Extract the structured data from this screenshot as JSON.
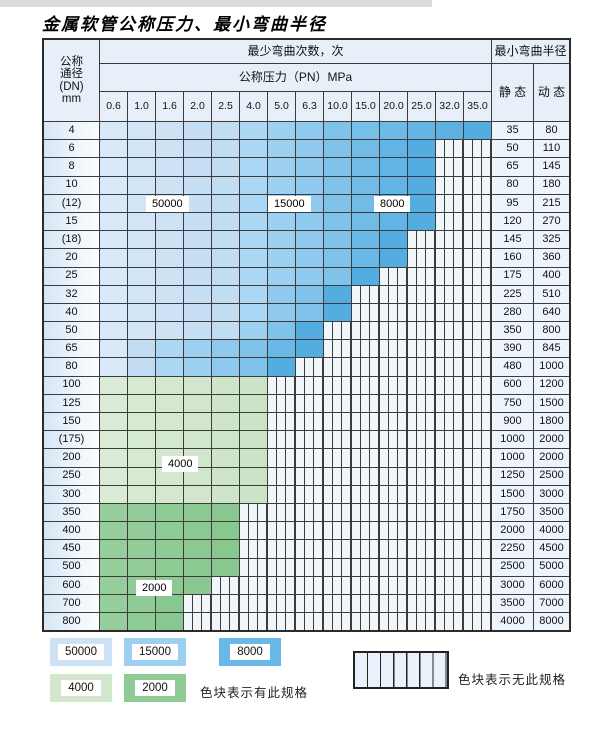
{
  "title": "金属软管公称压力、最小弯曲半径",
  "header": {
    "dn_lines": [
      "公称",
      "通径",
      "(DN)",
      "mm"
    ],
    "bend_cycles": "最少弯曲次数，次",
    "pressure_title": "公称压力（PN）MPa",
    "pressures": [
      "0.6",
      "1.0",
      "1.6",
      "2.0",
      "2.5",
      "4.0",
      "5.0",
      "6.3",
      "10.0",
      "15.0",
      "20.0",
      "25.0",
      "32.0",
      "35.0"
    ],
    "radius_title": "最小弯曲半径",
    "static_label": "静 态",
    "dynamic_label": "动 态"
  },
  "categories": {
    "A": {
      "label": "50000",
      "c1": "#d7e9f8",
      "c2": "#c2dcf2",
      "legend": "#cde2f5"
    },
    "B": {
      "label": "15000",
      "c1": "#aad7f3",
      "c2": "#8fc9ee",
      "legend": "#9dd0f0"
    },
    "C": {
      "label": "8000",
      "c1": "#7fc3eb",
      "c2": "#54ade0",
      "legend": "#6ab8e6"
    },
    "D": {
      "label": "4000",
      "c1": "#d9ebd4",
      "c2": "#cbe3c6",
      "legend": "#d2e7cd"
    },
    "E": {
      "label": "2000",
      "c1": "#96ce9b",
      "c2": "#88c78f",
      "legend": "#8fcb95"
    }
  },
  "rows": [
    {
      "dn": "4",
      "cells": "AAAAABBBCCCCCC",
      "static": "35",
      "dynamic": "80"
    },
    {
      "dn": "6",
      "cells": "AAAAABBBCCCCXX",
      "static": "50",
      "dynamic": "110"
    },
    {
      "dn": "8",
      "cells": "AAAAABBBCCCCXX",
      "static": "65",
      "dynamic": "145"
    },
    {
      "dn": "10",
      "cells": "AAAAABBBCCCCXX",
      "static": "80",
      "dynamic": "180"
    },
    {
      "dn": "(12)",
      "cells": "AAAAABBBCCCCXX",
      "static": "95",
      "dynamic": "215"
    },
    {
      "dn": "15",
      "cells": "AAAAABBBCCCCXX",
      "static": "120",
      "dynamic": "270"
    },
    {
      "dn": "(18)",
      "cells": "AAAAABBBCCCXXX",
      "static": "145",
      "dynamic": "325"
    },
    {
      "dn": "20",
      "cells": "AAAAABBBCCCXXX",
      "static": "160",
      "dynamic": "360"
    },
    {
      "dn": "25",
      "cells": "AAAAABBBCCXXXX",
      "static": "175",
      "dynamic": "400"
    },
    {
      "dn": "32",
      "cells": "AAAAABBCCXXXXX",
      "static": "225",
      "dynamic": "510"
    },
    {
      "dn": "40",
      "cells": "AAAAABBCCXXXXX",
      "static": "280",
      "dynamic": "640"
    },
    {
      "dn": "50",
      "cells": "AAAAABCCXXXXXX",
      "static": "350",
      "dynamic": "800"
    },
    {
      "dn": "65",
      "cells": "AABBBCCCXXXXXX",
      "static": "390",
      "dynamic": "845"
    },
    {
      "dn": "80",
      "cells": "AABBBCCXXXXXXX",
      "static": "480",
      "dynamic": "1000"
    },
    {
      "dn": "100",
      "cells": "DDDDDDXXXXXXXX",
      "static": "600",
      "dynamic": "1200"
    },
    {
      "dn": "125",
      "cells": "DDDDDDXXXXXXXX",
      "static": "750",
      "dynamic": "1500"
    },
    {
      "dn": "150",
      "cells": "DDDDDDXXXXXXXX",
      "static": "900",
      "dynamic": "1800"
    },
    {
      "dn": "(175)",
      "cells": "DDDDDDXXXXXXXX",
      "static": "1000",
      "dynamic": "2000"
    },
    {
      "dn": "200",
      "cells": "DDDDDDXXXXXXXX",
      "static": "1000",
      "dynamic": "2000"
    },
    {
      "dn": "250",
      "cells": "DDDDDDXXXXXXXX",
      "static": "1250",
      "dynamic": "2500"
    },
    {
      "dn": "300",
      "cells": "DDDDDDXXXXXXXX",
      "static": "1500",
      "dynamic": "3000"
    },
    {
      "dn": "350",
      "cells": "EEEEEXXXXXXXXX",
      "static": "1750",
      "dynamic": "3500"
    },
    {
      "dn": "400",
      "cells": "EEEEEXXXXXXXXX",
      "static": "2000",
      "dynamic": "4000"
    },
    {
      "dn": "450",
      "cells": "EEEEEXXXXXXXXX",
      "static": "2250",
      "dynamic": "4500"
    },
    {
      "dn": "500",
      "cells": "EEEEEXXXXXXXXX",
      "static": "2500",
      "dynamic": "5000"
    },
    {
      "dn": "600",
      "cells": "EEEEXXXXXXXXXX",
      "static": "3000",
      "dynamic": "6000"
    },
    {
      "dn": "700",
      "cells": "EEEXXXXXXXXXXX",
      "static": "3500",
      "dynamic": "7000"
    },
    {
      "dn": "800",
      "cells": "EEEXXXXXXXXXXX",
      "static": "4000",
      "dynamic": "8000"
    }
  ],
  "overlays": {
    "l50000": "50000",
    "l15000": "15000",
    "l8000": "8000",
    "l4000": "4000",
    "l2000": "2000"
  },
  "legend": {
    "items": [
      {
        "cat": "A",
        "label": "50000"
      },
      {
        "cat": "B",
        "label": "15000"
      },
      {
        "cat": "C",
        "label": "8000"
      },
      {
        "cat": "D",
        "label": "4000"
      },
      {
        "cat": "E",
        "label": "2000"
      }
    ],
    "has_text": "色块表示有此规格",
    "none_text": "色块表示无此规格"
  }
}
